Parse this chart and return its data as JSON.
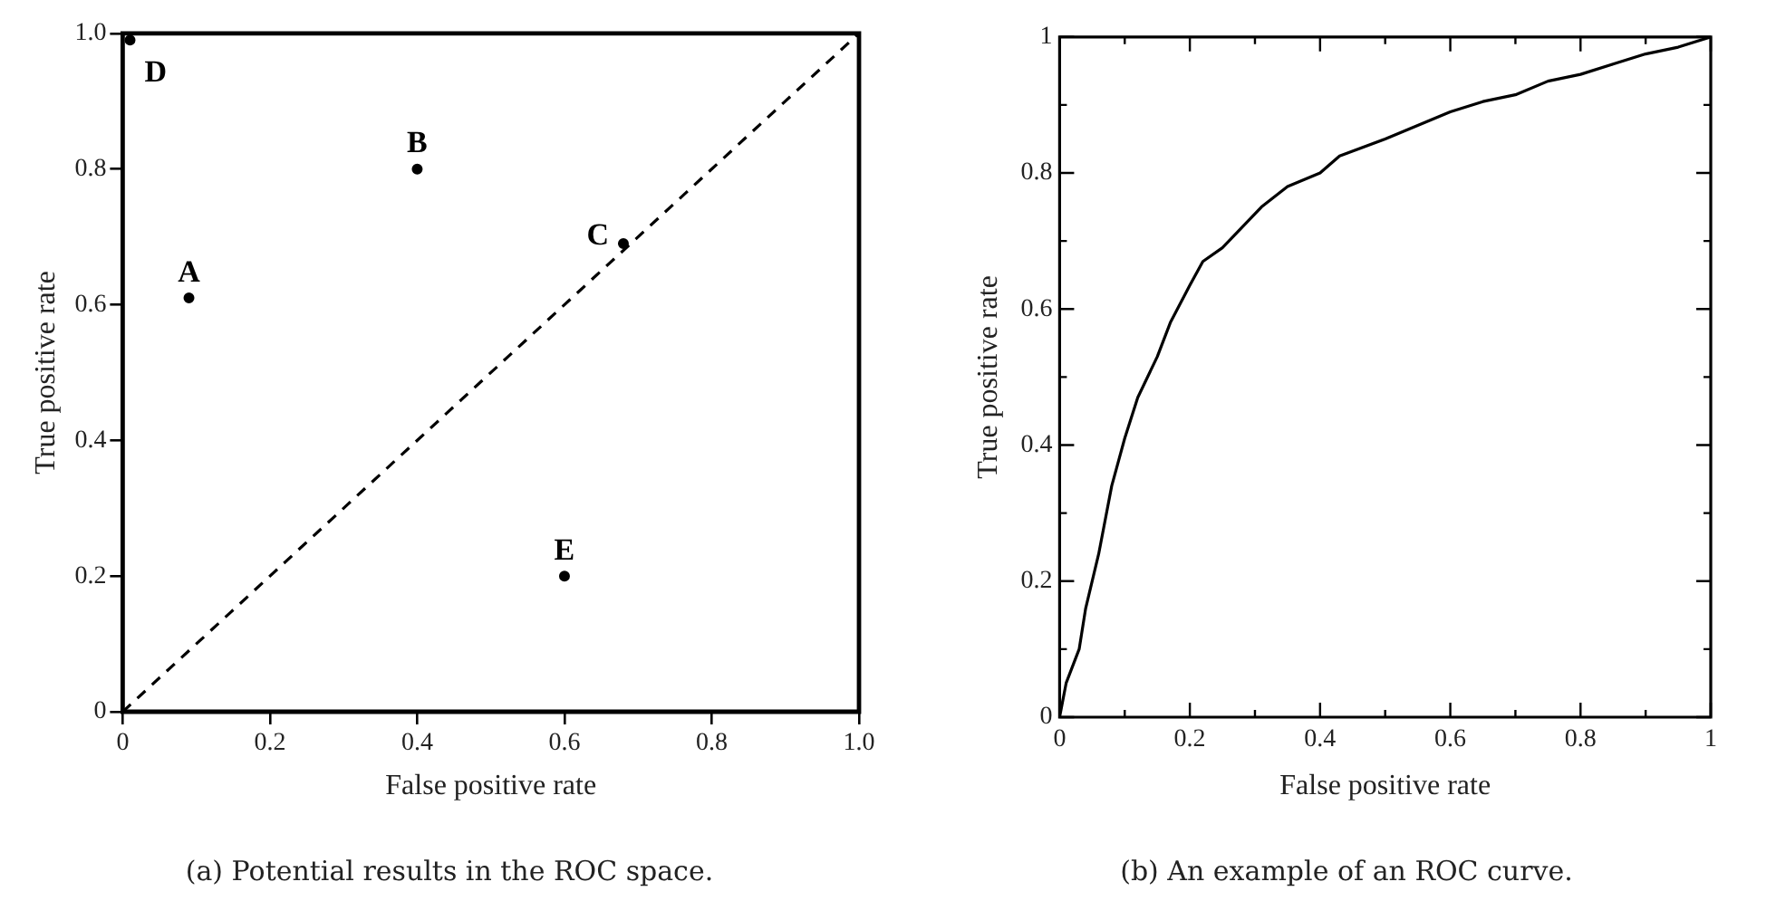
{
  "chart_data": [
    {
      "type": "scatter",
      "xlabel": "False positive rate",
      "ylabel": "True positive rate",
      "xlim": [
        0,
        1
      ],
      "ylim": [
        0,
        1
      ],
      "xticks": [
        0,
        0.2,
        0.4,
        0.6,
        0.8,
        {
          "value": 1,
          "label": "1.0"
        }
      ],
      "yticks": [
        0,
        0.2,
        0.4,
        0.6,
        0.8,
        {
          "value": 1,
          "label": "1.0"
        }
      ],
      "grid": false,
      "series": [
        {
          "color": "#000000",
          "marker": "circle",
          "x": [
            0.09,
            0.4,
            0.68,
            0.01,
            0.6
          ],
          "values": [
            0.61,
            0.8,
            0.69,
            0.99,
            0.2
          ]
        },
        {
          "type": "line",
          "color": "#000000",
          "marker": "none",
          "line_style": "dashed",
          "x": [
            0,
            1
          ],
          "values": [
            0,
            1
          ]
        }
      ],
      "annotations": [
        "(a) Potential results in the ROC space.",
        {
          "text": "A",
          "x": 0.09,
          "y": 0.61
        },
        {
          "text": "B",
          "x": 0.4,
          "y": 0.8
        },
        {
          "text": "C",
          "x": 0.68,
          "y": 0.69
        },
        {
          "text": "D",
          "x": 0.01,
          "y": 0.99
        },
        {
          "text": "E",
          "x": 0.6,
          "y": 0.2
        }
      ]
    },
    {
      "type": "line",
      "xlabel": "False positive rate",
      "ylabel": "True positive rate",
      "xlim": [
        0,
        1
      ],
      "ylim": [
        0,
        1
      ],
      "xticks": [
        0,
        {
          "value": 0.1,
          "label": null
        },
        0.2,
        {
          "value": 0.3,
          "label": null
        },
        0.4,
        {
          "value": 0.5,
          "label": null
        },
        0.6,
        {
          "value": 0.7,
          "label": null
        },
        0.8,
        {
          "value": 0.9,
          "label": null
        },
        1
      ],
      "yticks": [
        0,
        {
          "value": 0.1,
          "label": null
        },
        0.2,
        {
          "value": 0.3,
          "label": null
        },
        0.4,
        {
          "value": 0.5,
          "label": null
        },
        0.6,
        {
          "value": 0.7,
          "label": null
        },
        0.8,
        {
          "value": 0.9,
          "label": null
        },
        1
      ],
      "grid": false,
      "marker": "none",
      "series": [
        {
          "color": "#000000",
          "x": [
            0,
            0.01,
            0.03,
            0.04,
            0.06,
            0.08,
            0.1,
            0.12,
            0.15,
            0.17,
            0.2,
            0.22,
            0.25,
            0.28,
            0.31,
            0.35,
            0.4,
            0.43,
            0.5,
            0.55,
            0.6,
            0.65,
            0.7,
            0.75,
            0.8,
            0.85,
            0.9,
            0.95,
            1
          ],
          "values": [
            0,
            0.05,
            0.1,
            0.16,
            0.24,
            0.34,
            0.41,
            0.47,
            0.53,
            0.58,
            0.635,
            0.67,
            0.69,
            0.72,
            0.75,
            0.78,
            0.8,
            0.825,
            0.85,
            0.87,
            0.89,
            0.905,
            0.915,
            0.935,
            0.945,
            0.96,
            0.975,
            0.985,
            1
          ]
        }
      ],
      "annotations": [
        "(b) An example of an ROC curve."
      ]
    }
  ]
}
